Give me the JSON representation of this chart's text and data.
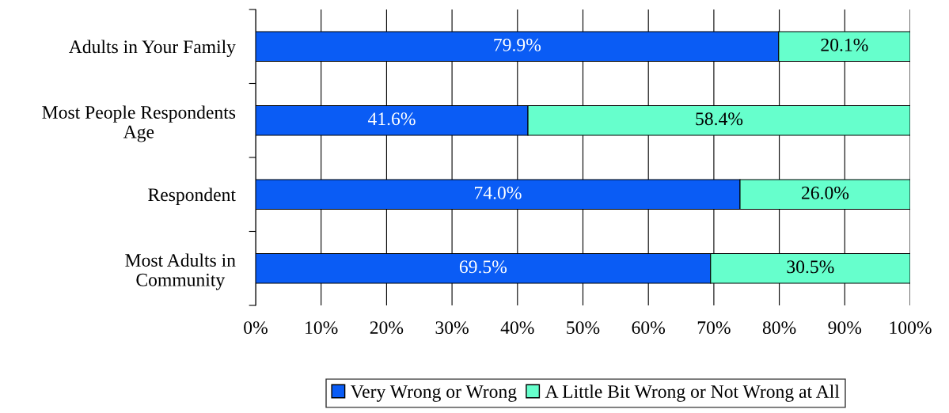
{
  "chart_data": {
    "type": "bar",
    "orientation": "horizontal",
    "stacked": true,
    "categories": [
      "Adults in Your Family",
      "Most People Respondents\nAge",
      "Respondent",
      "Most Adults in\nCommunity"
    ],
    "series": [
      {
        "name": "Very Wrong or Wrong",
        "color": "#0a5cf5",
        "values": [
          79.9,
          41.6,
          74.0,
          69.5
        ],
        "value_labels": [
          "79.9%",
          "41.6%",
          "74.0%",
          "69.5%"
        ]
      },
      {
        "name": "A Little Bit Wrong or Not Wrong at All",
        "color": "#66ffcc",
        "values": [
          20.1,
          58.4,
          26.0,
          30.5
        ],
        "value_labels": [
          "20.1%",
          "58.4%",
          "26.0%",
          "30.5%"
        ]
      }
    ],
    "xlim": [
      0,
      100
    ],
    "xticks": [
      {
        "value": 0,
        "label": "0%"
      },
      {
        "value": 10,
        "label": "10%"
      },
      {
        "value": 20,
        "label": "20%"
      },
      {
        "value": 30,
        "label": "30%"
      },
      {
        "value": 40,
        "label": "40%"
      },
      {
        "value": 50,
        "label": "50%"
      },
      {
        "value": 60,
        "label": "60%"
      },
      {
        "value": 70,
        "label": "70%"
      },
      {
        "value": 80,
        "label": "80%"
      },
      {
        "value": 90,
        "label": "90%"
      },
      {
        "value": 100,
        "label": "100%"
      }
    ],
    "grid": "x",
    "legend": "bottom"
  }
}
